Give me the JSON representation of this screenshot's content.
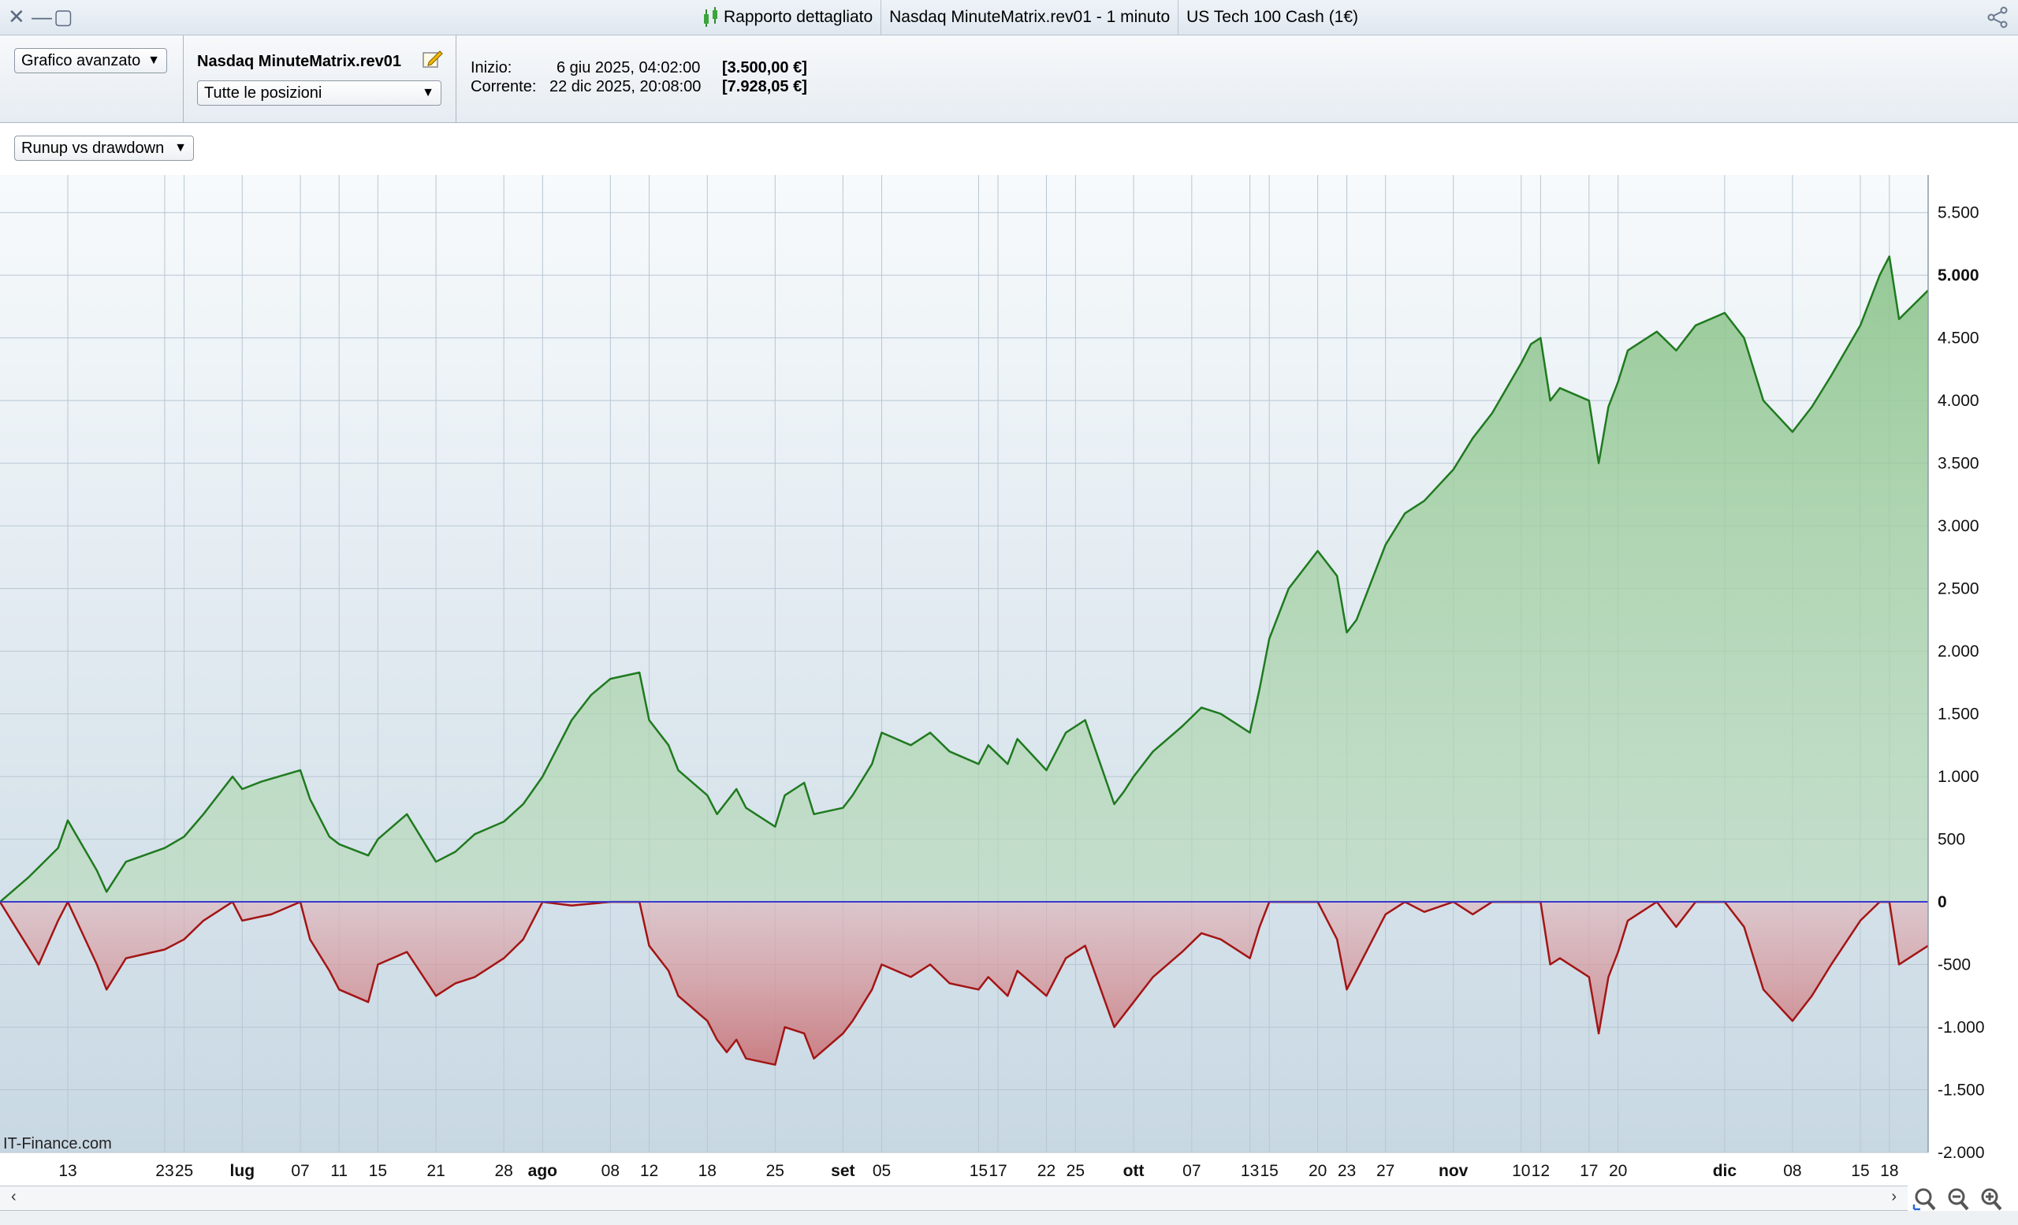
{
  "window": {
    "tabs": [
      "Rapporto dettagliato",
      "Nasdaq MinuteMatrix.rev01 - 1 minuto",
      "US Tech 100 Cash (1€)"
    ]
  },
  "header": {
    "view_select": "Grafico avanzato",
    "strategy_name": "Nasdaq MinuteMatrix.rev01",
    "positions_select": "Tutte le posizioni",
    "start_label": "Inizio:",
    "start_date": "6 giu 2025, 04:02:00",
    "start_equity": "[3.500,00 €]",
    "current_label": "Corrente:",
    "current_date": "22 dic 2025, 20:08:00",
    "current_equity": "[7.928,05 €]"
  },
  "chart_controls": {
    "mode_select": "Runup vs drawdown"
  },
  "watermark": "IT-Finance.com",
  "colors": {
    "runup": "#1f7a1f",
    "drawdown": "#a31515",
    "zero_line": "#3a3acc",
    "background_top": "#f7fafc",
    "background_bottom": "#c8d8e3"
  },
  "chart_data": {
    "type": "area",
    "ylim": [
      -2000,
      5800
    ],
    "y_ticks": [
      {
        "v": 5500,
        "label": "5.500",
        "bold": false
      },
      {
        "v": 5000,
        "label": "5.000",
        "bold": true
      },
      {
        "v": 4500,
        "label": "4.500",
        "bold": false
      },
      {
        "v": 4000,
        "label": "4.000",
        "bold": false
      },
      {
        "v": 3500,
        "label": "3.500",
        "bold": false
      },
      {
        "v": 3000,
        "label": "3.000",
        "bold": false
      },
      {
        "v": 2500,
        "label": "2.500",
        "bold": false
      },
      {
        "v": 2000,
        "label": "2.000",
        "bold": false
      },
      {
        "v": 1500,
        "label": "1.500",
        "bold": false
      },
      {
        "v": 1000,
        "label": "1.000",
        "bold": false
      },
      {
        "v": 500,
        "label": "500",
        "bold": false
      },
      {
        "v": 0,
        "label": "0",
        "bold": true
      },
      {
        "v": -500,
        "label": "-500",
        "bold": false
      },
      {
        "v": -1000,
        "label": "-1.000",
        "bold": false
      },
      {
        "v": -1500,
        "label": "-1.500",
        "bold": false
      },
      {
        "v": -2000,
        "label": "-2.000",
        "bold": false
      }
    ],
    "x_range": [
      "2025-06-06",
      "2025-12-22"
    ],
    "x_ticks": [
      {
        "date": "2025-06-13",
        "label": "13",
        "bold": false
      },
      {
        "date": "2025-06-23",
        "label": "23",
        "bold": false
      },
      {
        "date": "2025-06-25",
        "label": "25",
        "bold": false
      },
      {
        "date": "2025-07-01",
        "label": "lug",
        "bold": true
      },
      {
        "date": "2025-07-07",
        "label": "07",
        "bold": false
      },
      {
        "date": "2025-07-11",
        "label": "11",
        "bold": false
      },
      {
        "date": "2025-07-15",
        "label": "15",
        "bold": false
      },
      {
        "date": "2025-07-21",
        "label": "21",
        "bold": false
      },
      {
        "date": "2025-07-28",
        "label": "28",
        "bold": false
      },
      {
        "date": "2025-08-01",
        "label": "ago",
        "bold": true
      },
      {
        "date": "2025-08-08",
        "label": "08",
        "bold": false
      },
      {
        "date": "2025-08-12",
        "label": "12",
        "bold": false
      },
      {
        "date": "2025-08-18",
        "label": "18",
        "bold": false
      },
      {
        "date": "2025-08-25",
        "label": "25",
        "bold": false
      },
      {
        "date": "2025-09-01",
        "label": "set",
        "bold": true
      },
      {
        "date": "2025-09-05",
        "label": "05",
        "bold": false
      },
      {
        "date": "2025-09-15",
        "label": "15",
        "bold": false
      },
      {
        "date": "2025-09-17",
        "label": "17",
        "bold": false
      },
      {
        "date": "2025-09-22",
        "label": "22",
        "bold": false
      },
      {
        "date": "2025-09-25",
        "label": "25",
        "bold": false
      },
      {
        "date": "2025-10-01",
        "label": "ott",
        "bold": true
      },
      {
        "date": "2025-10-07",
        "label": "07",
        "bold": false
      },
      {
        "date": "2025-10-13",
        "label": "13",
        "bold": false
      },
      {
        "date": "2025-10-15",
        "label": "15",
        "bold": false
      },
      {
        "date": "2025-10-20",
        "label": "20",
        "bold": false
      },
      {
        "date": "2025-10-23",
        "label": "23",
        "bold": false
      },
      {
        "date": "2025-10-27",
        "label": "27",
        "bold": false
      },
      {
        "date": "2025-11-03",
        "label": "nov",
        "bold": true
      },
      {
        "date": "2025-11-10",
        "label": "10",
        "bold": false
      },
      {
        "date": "2025-11-12",
        "label": "12",
        "bold": false
      },
      {
        "date": "2025-11-17",
        "label": "17",
        "bold": false
      },
      {
        "date": "2025-11-20",
        "label": "20",
        "bold": false
      },
      {
        "date": "2025-12-01",
        "label": "dic",
        "bold": true
      },
      {
        "date": "2025-12-08",
        "label": "08",
        "bold": false
      },
      {
        "date": "2025-12-15",
        "label": "15",
        "bold": false
      },
      {
        "date": "2025-12-18",
        "label": "18",
        "bold": false
      }
    ],
    "series": [
      {
        "key": "runup",
        "points": [
          [
            "2025-06-06",
            0
          ],
          [
            "2025-06-09",
            200
          ],
          [
            "2025-06-12",
            430
          ],
          [
            "2025-06-13",
            650
          ],
          [
            "2025-06-16",
            250
          ],
          [
            "2025-06-17",
            80
          ],
          [
            "2025-06-19",
            320
          ],
          [
            "2025-06-23",
            430
          ],
          [
            "2025-06-25",
            520
          ],
          [
            "2025-06-27",
            700
          ],
          [
            "2025-06-30",
            1000
          ],
          [
            "2025-07-01",
            900
          ],
          [
            "2025-07-03",
            960
          ],
          [
            "2025-07-07",
            1050
          ],
          [
            "2025-07-08",
            820
          ],
          [
            "2025-07-10",
            520
          ],
          [
            "2025-07-11",
            460
          ],
          [
            "2025-07-14",
            370
          ],
          [
            "2025-07-15",
            500
          ],
          [
            "2025-07-18",
            700
          ],
          [
            "2025-07-21",
            320
          ],
          [
            "2025-07-23",
            400
          ],
          [
            "2025-07-25",
            540
          ],
          [
            "2025-07-28",
            640
          ],
          [
            "2025-07-30",
            780
          ],
          [
            "2025-08-01",
            1000
          ],
          [
            "2025-08-04",
            1450
          ],
          [
            "2025-08-06",
            1650
          ],
          [
            "2025-08-08",
            1780
          ],
          [
            "2025-08-11",
            1830
          ],
          [
            "2025-08-12",
            1450
          ],
          [
            "2025-08-14",
            1250
          ],
          [
            "2025-08-15",
            1050
          ],
          [
            "2025-08-18",
            850
          ],
          [
            "2025-08-19",
            700
          ],
          [
            "2025-08-20",
            800
          ],
          [
            "2025-08-21",
            900
          ],
          [
            "2025-08-22",
            750
          ],
          [
            "2025-08-25",
            600
          ],
          [
            "2025-08-26",
            850
          ],
          [
            "2025-08-28",
            950
          ],
          [
            "2025-08-29",
            700
          ],
          [
            "2025-09-01",
            750
          ],
          [
            "2025-09-02",
            850
          ],
          [
            "2025-09-04",
            1100
          ],
          [
            "2025-09-05",
            1350
          ],
          [
            "2025-09-08",
            1250
          ],
          [
            "2025-09-10",
            1350
          ],
          [
            "2025-09-12",
            1200
          ],
          [
            "2025-09-15",
            1100
          ],
          [
            "2025-09-16",
            1250
          ],
          [
            "2025-09-18",
            1100
          ],
          [
            "2025-09-19",
            1300
          ],
          [
            "2025-09-22",
            1050
          ],
          [
            "2025-09-23",
            1200
          ],
          [
            "2025-09-24",
            1350
          ],
          [
            "2025-09-26",
            1450
          ],
          [
            "2025-09-29",
            780
          ],
          [
            "2025-09-30",
            880
          ],
          [
            "2025-10-01",
            1000
          ],
          [
            "2025-10-03",
            1200
          ],
          [
            "2025-10-06",
            1400
          ],
          [
            "2025-10-08",
            1550
          ],
          [
            "2025-10-10",
            1500
          ],
          [
            "2025-10-13",
            1350
          ],
          [
            "2025-10-14",
            1700
          ],
          [
            "2025-10-15",
            2100
          ],
          [
            "2025-10-17",
            2500
          ],
          [
            "2025-10-20",
            2800
          ],
          [
            "2025-10-22",
            2600
          ],
          [
            "2025-10-23",
            2150
          ],
          [
            "2025-10-24",
            2250
          ],
          [
            "2025-10-27",
            2850
          ],
          [
            "2025-10-29",
            3100
          ],
          [
            "2025-10-31",
            3200
          ],
          [
            "2025-11-03",
            3450
          ],
          [
            "2025-11-05",
            3700
          ],
          [
            "2025-11-07",
            3900
          ],
          [
            "2025-11-10",
            4300
          ],
          [
            "2025-11-11",
            4450
          ],
          [
            "2025-11-12",
            4500
          ],
          [
            "2025-11-13",
            4000
          ],
          [
            "2025-11-14",
            4100
          ],
          [
            "2025-11-17",
            4000
          ],
          [
            "2025-11-18",
            3500
          ],
          [
            "2025-11-19",
            3950
          ],
          [
            "2025-11-20",
            4150
          ],
          [
            "2025-11-21",
            4400
          ],
          [
            "2025-11-24",
            4550
          ],
          [
            "2025-11-26",
            4400
          ],
          [
            "2025-11-28",
            4600
          ],
          [
            "2025-12-01",
            4700
          ],
          [
            "2025-12-03",
            4500
          ],
          [
            "2025-12-05",
            4000
          ],
          [
            "2025-12-08",
            3750
          ],
          [
            "2025-12-10",
            3950
          ],
          [
            "2025-12-12",
            4200
          ],
          [
            "2025-12-15",
            4600
          ],
          [
            "2025-12-17",
            5000
          ],
          [
            "2025-12-18",
            5150
          ],
          [
            "2025-12-19",
            4650
          ],
          [
            "2025-12-22",
            4880
          ]
        ]
      },
      {
        "key": "drawdown",
        "points": [
          [
            "2025-06-06",
            0
          ],
          [
            "2025-06-08",
            -250
          ],
          [
            "2025-06-10",
            -500
          ],
          [
            "2025-06-12",
            -150
          ],
          [
            "2025-06-13",
            0
          ],
          [
            "2025-06-16",
            -500
          ],
          [
            "2025-06-17",
            -700
          ],
          [
            "2025-06-19",
            -450
          ],
          [
            "2025-06-23",
            -380
          ],
          [
            "2025-06-25",
            -300
          ],
          [
            "2025-06-27",
            -150
          ],
          [
            "2025-06-30",
            0
          ],
          [
            "2025-07-01",
            -150
          ],
          [
            "2025-07-04",
            -100
          ],
          [
            "2025-07-07",
            0
          ],
          [
            "2025-07-08",
            -300
          ],
          [
            "2025-07-10",
            -550
          ],
          [
            "2025-07-11",
            -700
          ],
          [
            "2025-07-14",
            -800
          ],
          [
            "2025-07-15",
            -500
          ],
          [
            "2025-07-18",
            -400
          ],
          [
            "2025-07-21",
            -750
          ],
          [
            "2025-07-23",
            -650
          ],
          [
            "2025-07-25",
            -600
          ],
          [
            "2025-07-28",
            -450
          ],
          [
            "2025-07-30",
            -300
          ],
          [
            "2025-08-01",
            0
          ],
          [
            "2025-08-04",
            -30
          ],
          [
            "2025-08-08",
            0
          ],
          [
            "2025-08-11",
            0
          ],
          [
            "2025-08-12",
            -350
          ],
          [
            "2025-08-14",
            -550
          ],
          [
            "2025-08-15",
            -750
          ],
          [
            "2025-08-18",
            -950
          ],
          [
            "2025-08-19",
            -1100
          ],
          [
            "2025-08-20",
            -1200
          ],
          [
            "2025-08-21",
            -1100
          ],
          [
            "2025-08-22",
            -1250
          ],
          [
            "2025-08-25",
            -1300
          ],
          [
            "2025-08-26",
            -1000
          ],
          [
            "2025-08-28",
            -1050
          ],
          [
            "2025-08-29",
            -1250
          ],
          [
            "2025-09-01",
            -1050
          ],
          [
            "2025-09-02",
            -950
          ],
          [
            "2025-09-04",
            -700
          ],
          [
            "2025-09-05",
            -500
          ],
          [
            "2025-09-08",
            -600
          ],
          [
            "2025-09-10",
            -500
          ],
          [
            "2025-09-12",
            -650
          ],
          [
            "2025-09-15",
            -700
          ],
          [
            "2025-09-16",
            -600
          ],
          [
            "2025-09-18",
            -750
          ],
          [
            "2025-09-19",
            -550
          ],
          [
            "2025-09-22",
            -750
          ],
          [
            "2025-09-23",
            -600
          ],
          [
            "2025-09-24",
            -450
          ],
          [
            "2025-09-26",
            -350
          ],
          [
            "2025-09-29",
            -1000
          ],
          [
            "2025-09-30",
            -900
          ],
          [
            "2025-10-01",
            -800
          ],
          [
            "2025-10-03",
            -600
          ],
          [
            "2025-10-06",
            -400
          ],
          [
            "2025-10-08",
            -250
          ],
          [
            "2025-10-10",
            -300
          ],
          [
            "2025-10-13",
            -450
          ],
          [
            "2025-10-14",
            -200
          ],
          [
            "2025-10-15",
            0
          ],
          [
            "2025-10-17",
            0
          ],
          [
            "2025-10-20",
            0
          ],
          [
            "2025-10-22",
            -300
          ],
          [
            "2025-10-23",
            -700
          ],
          [
            "2025-10-24",
            -550
          ],
          [
            "2025-10-27",
            -100
          ],
          [
            "2025-10-29",
            0
          ],
          [
            "2025-10-31",
            -80
          ],
          [
            "2025-11-03",
            0
          ],
          [
            "2025-11-05",
            -100
          ],
          [
            "2025-11-07",
            0
          ],
          [
            "2025-11-10",
            0
          ],
          [
            "2025-11-12",
            0
          ],
          [
            "2025-11-13",
            -500
          ],
          [
            "2025-11-14",
            -450
          ],
          [
            "2025-11-17",
            -600
          ],
          [
            "2025-11-18",
            -1050
          ],
          [
            "2025-11-19",
            -600
          ],
          [
            "2025-11-20",
            -400
          ],
          [
            "2025-11-21",
            -150
          ],
          [
            "2025-11-24",
            0
          ],
          [
            "2025-11-26",
            -200
          ],
          [
            "2025-11-28",
            0
          ],
          [
            "2025-12-01",
            0
          ],
          [
            "2025-12-03",
            -200
          ],
          [
            "2025-12-05",
            -700
          ],
          [
            "2025-12-08",
            -950
          ],
          [
            "2025-12-10",
            -750
          ],
          [
            "2025-12-12",
            -500
          ],
          [
            "2025-12-15",
            -150
          ],
          [
            "2025-12-17",
            0
          ],
          [
            "2025-12-18",
            0
          ],
          [
            "2025-12-19",
            -500
          ],
          [
            "2025-12-22",
            -350
          ]
        ]
      }
    ]
  }
}
